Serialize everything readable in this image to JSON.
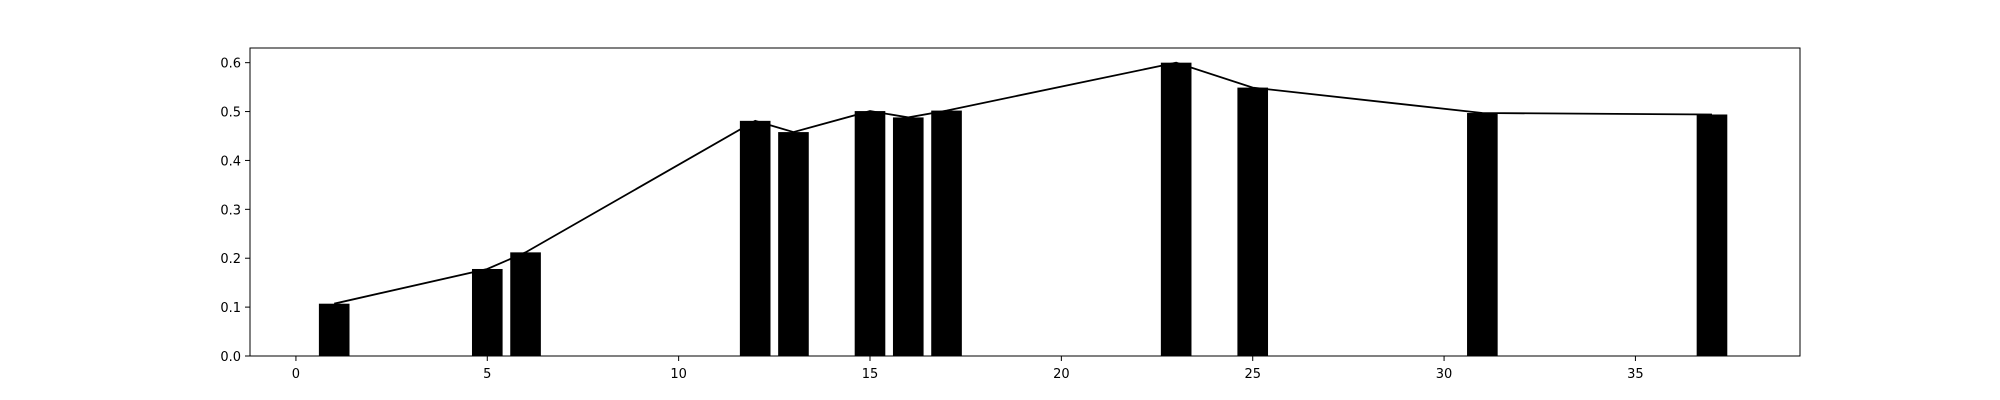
{
  "chart_data": {
    "type": "bar",
    "title": "",
    "xlabel": "",
    "ylabel": "",
    "xlim": [
      -1.2,
      39.3
    ],
    "ylim": [
      0,
      0.63
    ],
    "grid": false,
    "bar_color": "#000000",
    "line_color": "#000000",
    "background_color": "#ffffff",
    "x_ticks": [
      0,
      5,
      10,
      15,
      20,
      25,
      30,
      35
    ],
    "y_ticks": [
      0.0,
      0.1,
      0.2,
      0.3,
      0.4,
      0.5,
      0.6
    ],
    "x_tick_labels": [
      "0",
      "5",
      "10",
      "15",
      "20",
      "25",
      "30",
      "35"
    ],
    "y_tick_labels": [
      "0.0",
      "0.1",
      "0.2",
      "0.3",
      "0.4",
      "0.5",
      "0.6"
    ],
    "x": [
      1,
      5,
      6,
      12,
      13,
      15,
      16,
      17,
      23,
      25,
      31,
      37
    ],
    "values": [
      0.107,
      0.178,
      0.212,
      0.481,
      0.458,
      0.501,
      0.488,
      0.502,
      0.6,
      0.549,
      0.497,
      0.494
    ],
    "bar_width": 0.8,
    "line": {
      "x": [
        1,
        5,
        6,
        12,
        13,
        15,
        16,
        17,
        23,
        25,
        31,
        37
      ],
      "values": [
        0.107,
        0.178,
        0.212,
        0.481,
        0.458,
        0.501,
        0.488,
        0.502,
        0.6,
        0.549,
        0.497,
        0.494
      ]
    }
  }
}
